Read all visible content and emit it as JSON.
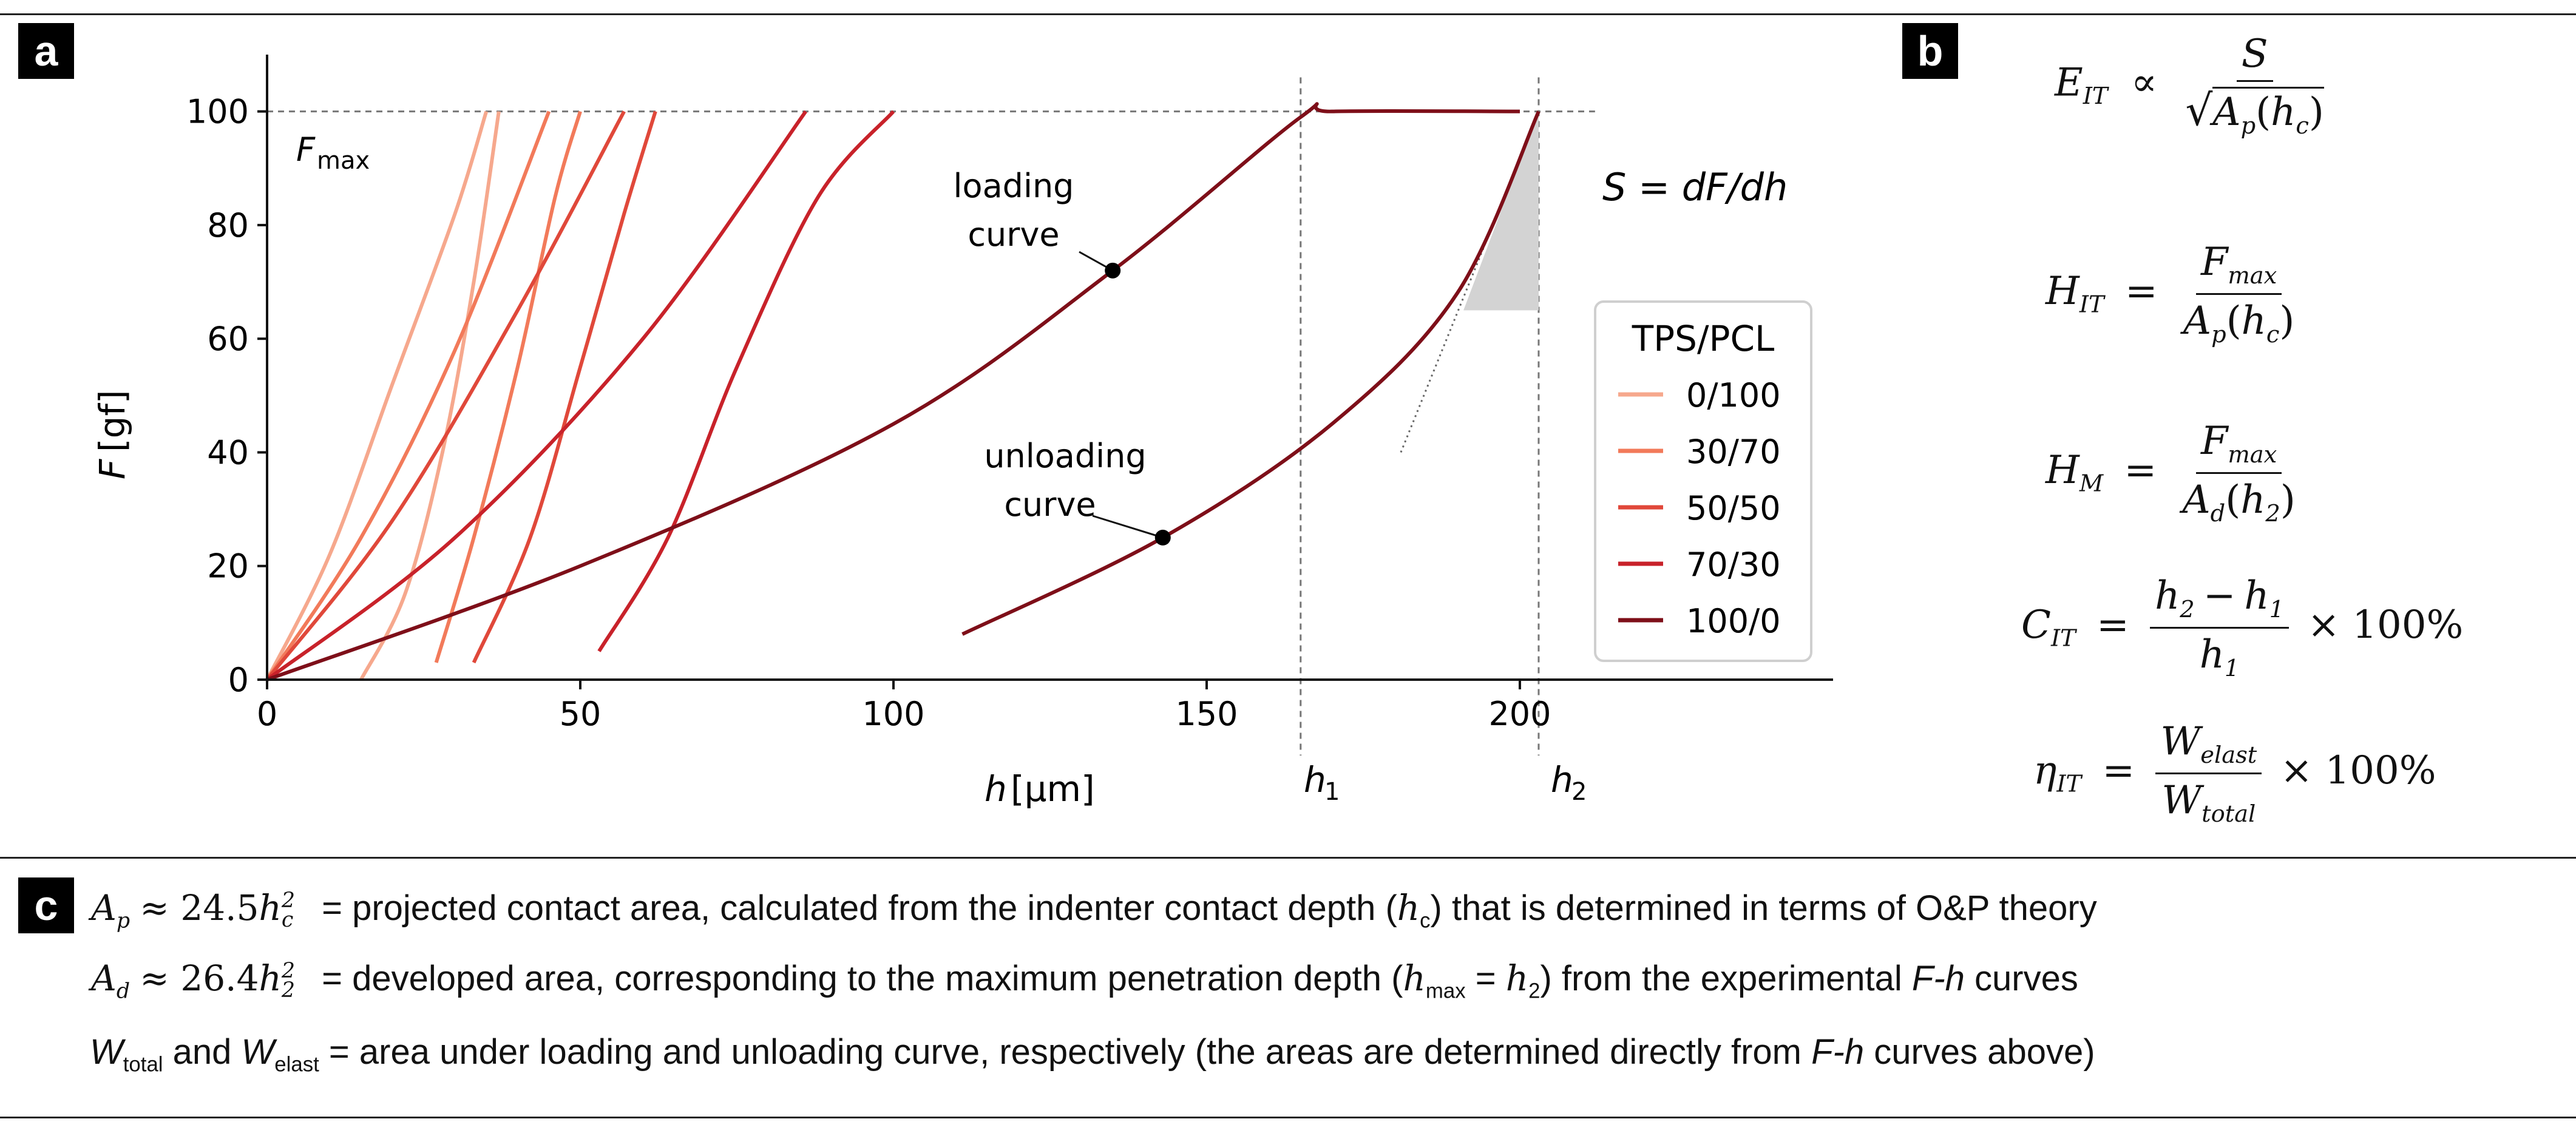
{
  "panels": {
    "a": "a",
    "b": "b",
    "c": "c"
  },
  "chart_data": {
    "type": "line",
    "xlabel_symbol": "h",
    "xlabel_unit": "[μm]",
    "ylabel_symbol": "F",
    "ylabel_unit": "[gf]",
    "xlim": [
      0,
      250
    ],
    "ylim": [
      0,
      110
    ],
    "xticks": [
      0,
      50,
      100,
      150,
      200
    ],
    "yticks": [
      0,
      20,
      40,
      60,
      80,
      100
    ],
    "fmax_label_main": "F",
    "fmax_label_sub": "max",
    "fmax_value": 100,
    "legend": {
      "title": "TPS/PCL",
      "placement": "center-right",
      "entries": [
        "0/100",
        "30/70",
        "50/50",
        "70/30",
        "100/0"
      ]
    },
    "series": [
      {
        "name": "0/100",
        "color": "#f6a88d",
        "loading": [
          [
            0,
            0
          ],
          [
            10,
            22
          ],
          [
            20,
            52
          ],
          [
            30,
            82
          ],
          [
            35,
            100
          ]
        ],
        "unloading": [
          [
            15,
            0
          ],
          [
            22,
            15
          ],
          [
            28,
            40
          ],
          [
            33,
            70
          ],
          [
            37,
            100
          ]
        ]
      },
      {
        "name": "30/70",
        "color": "#f27a5a",
        "loading": [
          [
            0,
            0
          ],
          [
            15,
            25
          ],
          [
            30,
            58
          ],
          [
            45,
            100
          ]
        ],
        "unloading": [
          [
            27,
            3
          ],
          [
            33,
            25
          ],
          [
            40,
            55
          ],
          [
            46,
            85
          ],
          [
            50,
            100
          ]
        ]
      },
      {
        "name": "50/50",
        "color": "#e0483a",
        "loading": [
          [
            0,
            0
          ],
          [
            20,
            28
          ],
          [
            40,
            65
          ],
          [
            57,
            100
          ]
        ],
        "unloading": [
          [
            33,
            3
          ],
          [
            42,
            25
          ],
          [
            50,
            55
          ],
          [
            57,
            82
          ],
          [
            62,
            100
          ]
        ]
      },
      {
        "name": "70/30",
        "color": "#c8222a",
        "loading": [
          [
            0,
            0
          ],
          [
            30,
            25
          ],
          [
            60,
            60
          ],
          [
            86,
            100
          ]
        ],
        "unloading": [
          [
            53,
            5
          ],
          [
            64,
            25
          ],
          [
            75,
            55
          ],
          [
            88,
            85
          ],
          [
            100,
            100
          ]
        ]
      },
      {
        "name": "100/0",
        "color": "#7e0f19",
        "loading": [
          [
            0,
            0
          ],
          [
            50,
            20
          ],
          [
            100,
            45
          ],
          [
            135,
            72
          ],
          [
            165,
            99
          ],
          [
            170,
            100
          ],
          [
            200,
            100
          ]
        ],
        "unloading": [
          [
            111,
            8
          ],
          [
            143,
            25
          ],
          [
            170,
            45
          ],
          [
            190,
            68
          ],
          [
            203,
            100
          ]
        ]
      }
    ],
    "annotations": {
      "loading_curve": {
        "line1": "loading",
        "line2": "curve",
        "point": [
          135,
          72
        ]
      },
      "unloading_curve": {
        "line1": "unloading",
        "line2": "curve",
        "point": [
          143,
          25
        ]
      },
      "h1": {
        "main": "h",
        "sub": "1",
        "x": 165
      },
      "h2": {
        "main": "h",
        "sub": "2",
        "x": 203
      },
      "stiffness": "S  =  dF/dh"
    }
  },
  "equations": {
    "eit": {
      "lhs": "E",
      "lhs_sub": "IT",
      "op": "∝",
      "num": "S",
      "den_main": "A",
      "den_sub": "p",
      "den_arg_main": "h",
      "den_arg_sub": "c"
    },
    "hit": {
      "lhs": "H",
      "lhs_sub": "IT",
      "num_main": "F",
      "num_sub": "max",
      "den_main": "A",
      "den_sub": "p",
      "den_arg_main": "h",
      "den_arg_sub": "c"
    },
    "hm": {
      "lhs": "H",
      "lhs_sub": "M",
      "num_main": "F",
      "num_sub": "max",
      "den_main": "A",
      "den_sub": "d",
      "den_arg_main": "h",
      "den_arg_sub": "2"
    },
    "cit": {
      "lhs": "C",
      "lhs_sub": "IT",
      "num_a": "h",
      "num_a_sub": "2",
      "minus": "−",
      "num_b": "h",
      "num_b_sub": "1",
      "den_main": "h",
      "den_sub": "1",
      "times": "× 100%"
    },
    "eta": {
      "lhs": "η",
      "lhs_sub": "IT",
      "num_main": "W",
      "num_sub": "elast",
      "den_main": "W",
      "den_sub": "total",
      "times": "× 100%"
    }
  },
  "caption": {
    "row1": {
      "sym": "A",
      "sym_sub": "p",
      "approx": "≈ 24.5",
      "var": "h",
      "var_sub": "c",
      "var_sup": "2",
      "text": "= projected contact area, calculated from the indenter contact depth (",
      "ref": "h",
      "ref_sub": "c",
      "text_end": ") that is determined in terms of O&P theory"
    },
    "row2": {
      "sym": "A",
      "sym_sub": "d",
      "approx": "≈ 26.4",
      "var": "h",
      "var_sub": "2",
      "var_sup": "2",
      "text": "= developed area, corresponding to the maximum penetration depth (",
      "ref": "h",
      "ref_sub": "max",
      "eq": " =  ",
      "ref2": "h",
      "ref2_sub": "2",
      "text_mid": ") from the experimental ",
      "ital": "F-h",
      "text_end": " curves"
    },
    "row3": {
      "w1": "W",
      "w1_sub": "total",
      "and": " and ",
      "w2": "W",
      "w2_sub": "elast",
      "text": " = area under loading and unloading curve, respectively (the areas are determined directly from ",
      "ital": "F-h",
      "text_end": " curves above)"
    }
  }
}
